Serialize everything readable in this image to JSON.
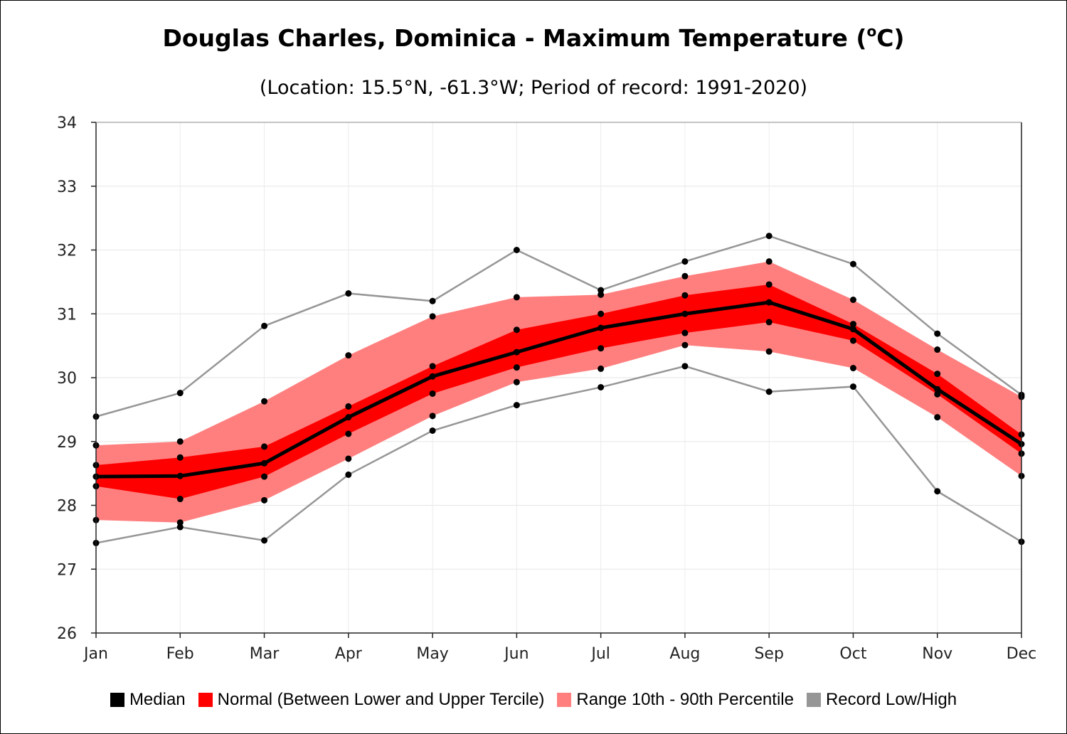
{
  "chart_data": {
    "type": "line",
    "title": "Douglas Charles, Dominica - Maximum Temperature (",
    "title_sup": "o",
    "title_end": "C)",
    "subtitle": "(Location: 15.5°N, -61.3°W; Period of record: 1991-2020)",
    "categories": [
      "Jan",
      "Feb",
      "Mar",
      "Apr",
      "May",
      "Jun",
      "Jul",
      "Aug",
      "Sep",
      "Oct",
      "Nov",
      "Dec"
    ],
    "ylim": [
      26,
      34
    ],
    "yticks": [
      26,
      27,
      28,
      29,
      30,
      31,
      32,
      33,
      34
    ],
    "grid": true,
    "legend_position": "bottom",
    "series": [
      {
        "name": "Median",
        "color": "#000000",
        "values": [
          28.45,
          28.46,
          28.66,
          29.38,
          30.02,
          30.4,
          30.78,
          31.0,
          31.18,
          30.76,
          29.82,
          28.96
        ]
      },
      {
        "name": "Normal (Between Lower and Upper Tercile)",
        "color": "#ff0000",
        "lower": [
          28.3,
          28.1,
          28.45,
          29.12,
          29.75,
          30.16,
          30.46,
          30.7,
          30.87,
          30.58,
          29.74,
          28.81
        ],
        "upper": [
          28.63,
          28.75,
          28.92,
          29.55,
          30.18,
          30.75,
          31.0,
          31.29,
          31.46,
          30.84,
          30.06,
          29.11
        ]
      },
      {
        "name": "Range 10th - 90th Percentile",
        "color": "#ff7f7f",
        "lower": [
          27.77,
          27.73,
          28.08,
          28.73,
          29.4,
          29.93,
          30.14,
          30.51,
          30.41,
          30.15,
          29.38,
          28.46
        ]
      },
      {
        "name": "Record Low/High",
        "color": "#969696",
        "low": [
          27.41,
          27.66,
          27.45,
          28.48,
          29.17,
          29.57,
          29.85,
          30.18,
          29.78,
          29.86,
          28.22,
          27.43
        ],
        "high": [
          29.39,
          29.76,
          30.81,
          31.32,
          31.2,
          32.0,
          31.37,
          31.82,
          32.22,
          31.78,
          30.69,
          29.73
        ]
      }
    ],
    "percentile_upper": [
      28.94,
      29.0,
      29.63,
      30.35,
      30.96,
      31.26,
      31.3,
      31.59,
      31.82,
      31.22,
      30.44,
      29.7
    ]
  }
}
